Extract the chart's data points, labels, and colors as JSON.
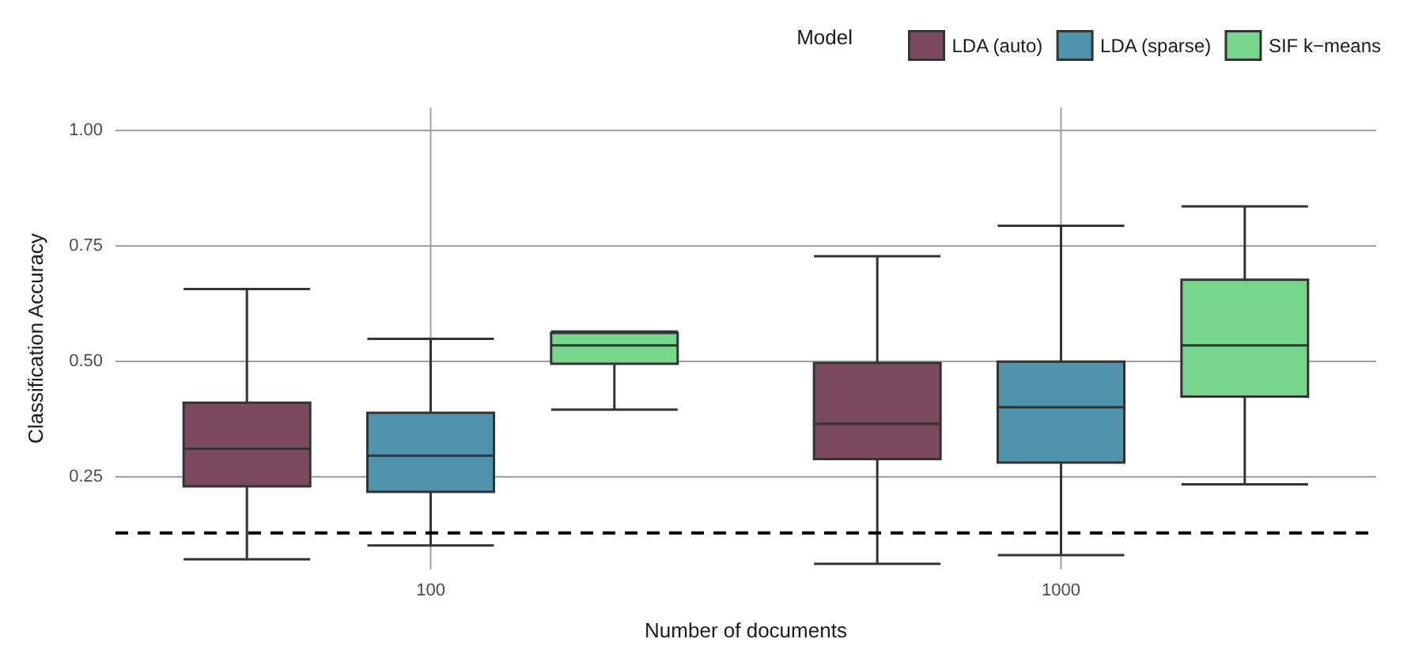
{
  "chart_data": {
    "type": "box",
    "xlabel": "Number of documents",
    "ylabel": "Classification Accuracy",
    "legend_title": "Model",
    "categories": [
      "100",
      "1000"
    ],
    "series": [
      {
        "name": "LDA (auto)",
        "color": "#7b4a5e",
        "boxes": [
          {
            "low": 0.072,
            "q1": 0.23,
            "median": 0.311,
            "q3": 0.411,
            "high": 0.657
          },
          {
            "low": 0.062,
            "q1": 0.289,
            "median": 0.365,
            "q3": 0.497,
            "high": 0.728
          }
        ]
      },
      {
        "name": "LDA (sparse)",
        "color": "#5093ad",
        "boxes": [
          {
            "low": 0.102,
            "q1": 0.218,
            "median": 0.296,
            "q3": 0.389,
            "high": 0.549
          },
          {
            "low": 0.081,
            "q1": 0.281,
            "median": 0.401,
            "q3": 0.5,
            "high": 0.794
          }
        ]
      },
      {
        "name": "SIF k−means",
        "color": "#76d68c",
        "boxes": [
          {
            "low": 0.396,
            "q1": 0.495,
            "median": 0.535,
            "q3": 0.562,
            "high": 0.565
          },
          {
            "low": 0.234,
            "q1": 0.424,
            "median": 0.535,
            "q3": 0.677,
            "high": 0.836
          }
        ]
      }
    ],
    "ylim": [
      0.05,
      1.05
    ],
    "yticks": [
      {
        "value": 0.25,
        "label": "0.25"
      },
      {
        "value": 0.5,
        "label": "0.50"
      },
      {
        "value": 0.75,
        "label": "0.75"
      },
      {
        "value": 1,
        "label": "1.00"
      }
    ],
    "ref_lines": [
      {
        "axis": "y",
        "value": 0.125,
        "color": "#000000",
        "line_style": "dashed"
      }
    ],
    "grid": true,
    "legend": "top right"
  }
}
